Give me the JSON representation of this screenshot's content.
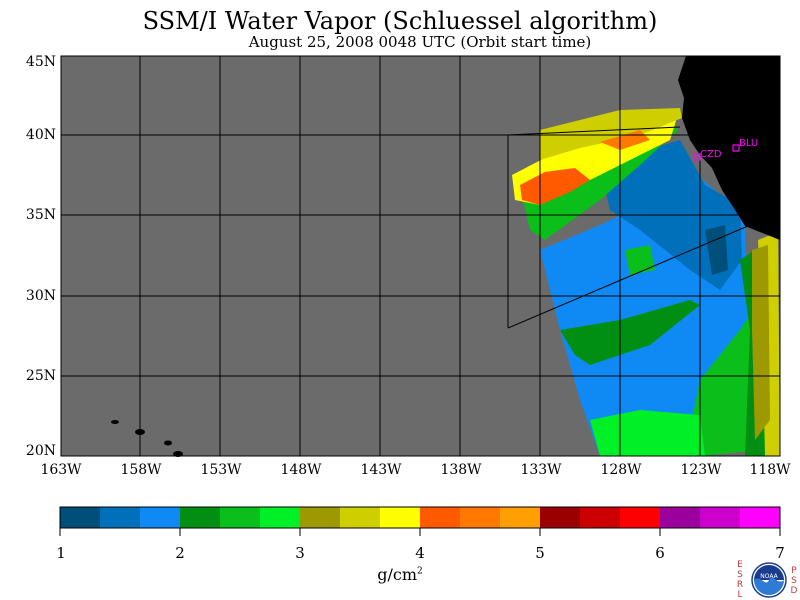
{
  "title": "SSM/I Water Vapor (Schluessel algorithm)",
  "subtitle": "August 25, 2008  0048 UTC  (Orbit start time)",
  "map": {
    "lat_labels": [
      "45N",
      "40N",
      "35N",
      "30N",
      "25N",
      "20N"
    ],
    "lon_labels": [
      "163W",
      "158W",
      "153W",
      "148W",
      "143W",
      "138W",
      "133W",
      "128W",
      "123W",
      "118W"
    ],
    "stations": [
      {
        "code": "CZD",
        "color": "#ff00ff"
      },
      {
        "code": "BLU",
        "color": "#ff00ff"
      }
    ],
    "colors": {
      "no_data": "#6b6b6b",
      "land": "#000000",
      "grid": "#000000"
    }
  },
  "colorbar": {
    "unit_base": "g/cm",
    "unit_exp": "2",
    "ticks": [
      "1",
      "2",
      "3",
      "4",
      "5",
      "6",
      "7"
    ],
    "colors": [
      "#004f7a",
      "#0070bb",
      "#0f8af5",
      "#008f12",
      "#0abf1a",
      "#00f028",
      "#9c9a00",
      "#cfcf00",
      "#ffff00",
      "#ff5a00",
      "#ff7800",
      "#ffa000",
      "#9a0000",
      "#cc0000",
      "#ff0000",
      "#9c009c",
      "#cc00cc",
      "#ff00ff"
    ]
  },
  "credits": {
    "left": [
      "E",
      "S",
      "R",
      "L"
    ],
    "right": [
      "P",
      "S",
      "D"
    ],
    "logo_text": "NOAA"
  }
}
